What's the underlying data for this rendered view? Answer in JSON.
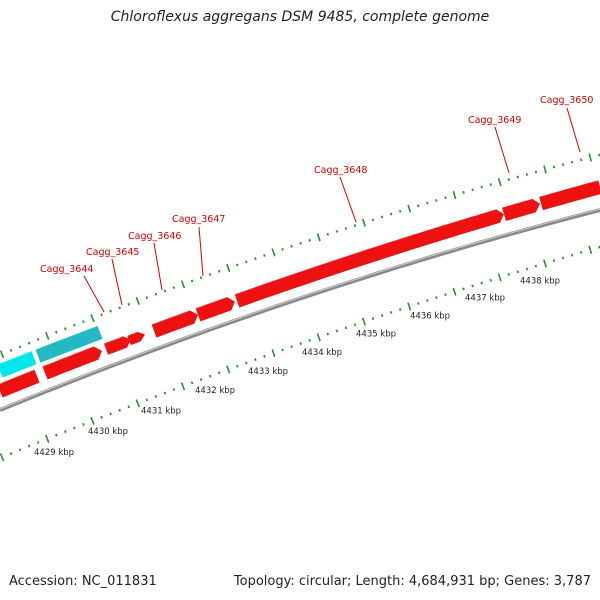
{
  "title": "Chloroflexus aggregans DSM 9485, complete genome",
  "footer": {
    "accession": "Accession: NC_011831",
    "summary": "Topology: circular; Length: 4,684,931 bp; Genes: 3,787"
  },
  "colors": {
    "gene_forward": "#ee1111",
    "gene_rna": "#00e5ee",
    "gene_rna_dark": "#22b8c4",
    "backbone": "#888888",
    "ticks": "#2e8b2e",
    "label": "#d40000"
  },
  "kbp_labels": [
    "4429 kbp",
    "4430 kbp",
    "4431 kbp",
    "4432 kbp",
    "4433 kbp",
    "4434 kbp",
    "4435 kbp",
    "4436 kbp",
    "4437 kbp",
    "4438 kbp"
  ],
  "gene_labels": [
    "Cagg_3644",
    "Cagg_3645",
    "Cagg_3646",
    "Cagg_3647",
    "Cagg_3648",
    "Cagg_3649",
    "Cagg_3650"
  ]
}
